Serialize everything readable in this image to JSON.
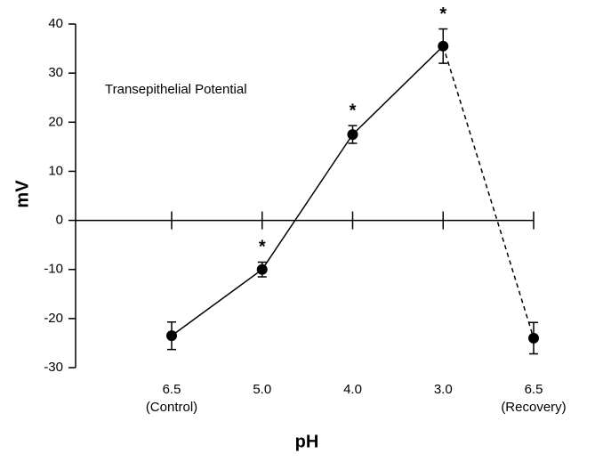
{
  "chart_data": {
    "type": "line",
    "annotation_text": "Transepithelial Potential",
    "x_label": "pH",
    "y_label": "mV",
    "categories": [
      "6.5",
      "5.0",
      "4.0",
      "3.0",
      "6.5"
    ],
    "category_notes": [
      "(Control)",
      null,
      null,
      null,
      "(Recovery)"
    ],
    "values": [
      -23.5,
      -10,
      17.5,
      35.5,
      -24
    ],
    "errors": [
      2.8,
      1.5,
      1.8,
      3.5,
      3.2
    ],
    "point_annotations": [
      null,
      "*",
      "*",
      "*",
      null
    ],
    "segment_styles": [
      "solid",
      "solid",
      "solid",
      "dashed"
    ],
    "color": "#000000",
    "ylim": [
      -30,
      40
    ],
    "yticks": [
      -30,
      -20,
      -10,
      0,
      10,
      20,
      30,
      40
    ]
  }
}
